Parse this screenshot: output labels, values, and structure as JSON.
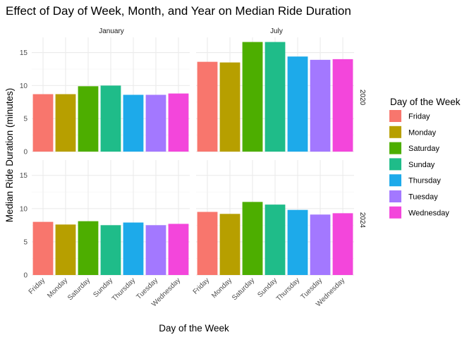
{
  "chart_data": {
    "type": "bar",
    "title": "Effect of Day of Week, Month, and Year on Median Ride Duration",
    "xlabel": "Day of the Week",
    "ylabel": "Median Ride Duration (minutes)",
    "categories": [
      "Friday",
      "Monday",
      "Saturday",
      "Sunday",
      "Thursday",
      "Tuesday",
      "Wednesday"
    ],
    "ylim": [
      0,
      17.3
    ],
    "yticks": [
      0,
      5,
      10,
      15
    ],
    "grid": true,
    "legend": {
      "title": "Day of the Week",
      "placement": "right",
      "colors": [
        "#F8766D",
        "#B79F00",
        "#4DAE00",
        "#1FBC89",
        "#1DAAEA",
        "#A378FF",
        "#F346DB"
      ]
    },
    "facet_columns": [
      "January",
      "July"
    ],
    "facet_rows": [
      "2020",
      "2024"
    ],
    "panels": [
      {
        "month": "January",
        "year": "2020",
        "values": [
          8.7,
          8.7,
          9.9,
          10.0,
          8.6,
          8.6,
          8.8
        ]
      },
      {
        "month": "July",
        "year": "2020",
        "values": [
          13.6,
          13.5,
          16.6,
          16.6,
          14.4,
          13.9,
          14.0
        ]
      },
      {
        "month": "January",
        "year": "2024",
        "values": [
          8.0,
          7.6,
          8.1,
          7.5,
          7.9,
          7.5,
          7.7
        ]
      },
      {
        "month": "July",
        "year": "2024",
        "values": [
          9.5,
          9.2,
          11.0,
          10.6,
          9.8,
          9.1,
          9.3
        ]
      }
    ]
  }
}
